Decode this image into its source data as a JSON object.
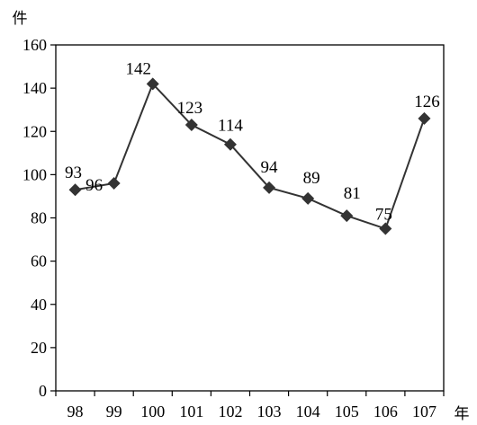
{
  "chart_data": {
    "type": "line",
    "categories": [
      "98",
      "99",
      "100",
      "101",
      "102",
      "103",
      "104",
      "105",
      "106",
      "107"
    ],
    "series": [
      {
        "values": [
          93,
          96,
          142,
          123,
          114,
          94,
          89,
          81,
          75,
          126
        ],
        "color": "#333333",
        "marker": "diamond"
      }
    ],
    "title": "",
    "xlabel": "年",
    "ylabel": "件",
    "ylim": [
      0,
      160
    ],
    "yticks": [
      0,
      20,
      40,
      60,
      80,
      100,
      120,
      140,
      160
    ],
    "grid": false,
    "legend": "none",
    "data_labels": [
      "93",
      "96",
      "142",
      "123",
      "114",
      "94",
      "89",
      "81",
      "75",
      "126"
    ]
  }
}
